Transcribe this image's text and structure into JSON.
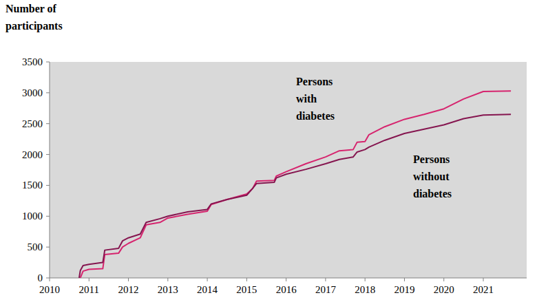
{
  "chart_data": {
    "type": "line",
    "y_label": "Number of participants",
    "x": [
      2010.75,
      2010.78,
      2010.85,
      2011.0,
      2011.35,
      2011.4,
      2011.75,
      2011.85,
      2012.0,
      2012.3,
      2012.45,
      2012.8,
      2013.0,
      2013.5,
      2014.0,
      2014.1,
      2014.5,
      2015.0,
      2015.15,
      2015.25,
      2015.7,
      2015.75,
      2016.0,
      2016.5,
      2017.0,
      2017.35,
      2017.7,
      2017.8,
      2018.0,
      2018.1,
      2018.5,
      2019.0,
      2019.5,
      2020.0,
      2020.5,
      2021.0,
      2021.7
    ],
    "series": [
      {
        "name": "Persons with diabetes",
        "color": "#d6246e",
        "values": [
          null,
          0,
          110,
          140,
          150,
          380,
          400,
          500,
          560,
          650,
          860,
          900,
          970,
          1030,
          1080,
          1190,
          1270,
          1360,
          1450,
          1570,
          1580,
          1650,
          1720,
          1850,
          1960,
          2060,
          2080,
          2200,
          2210,
          2320,
          2450,
          2570,
          2650,
          2740,
          2900,
          3020,
          3030
        ]
      },
      {
        "name": "Persons without diabetes",
        "color": "#85154f",
        "values": [
          0,
          120,
          200,
          220,
          250,
          450,
          480,
          600,
          650,
          710,
          900,
          960,
          1000,
          1070,
          1110,
          1200,
          1270,
          1340,
          1450,
          1530,
          1550,
          1620,
          1680,
          1760,
          1850,
          1920,
          1960,
          2040,
          2080,
          2120,
          2230,
          2340,
          2410,
          2480,
          2580,
          2640,
          2650
        ]
      }
    ],
    "xlim": [
      2010,
      2022.1
    ],
    "xticks": [
      2010,
      2011,
      2012,
      2013,
      2014,
      2015,
      2016,
      2017,
      2018,
      2019,
      2020,
      2021
    ],
    "ylim": [
      0,
      3500
    ],
    "yticks": [
      0,
      500,
      1000,
      1500,
      2000,
      2500,
      3000,
      3500
    ],
    "grid": false
  }
}
